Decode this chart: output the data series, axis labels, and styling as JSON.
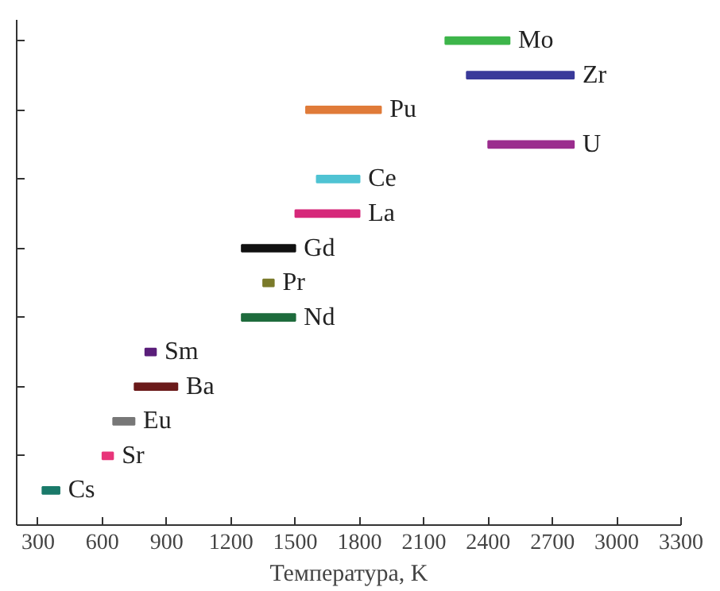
{
  "chart_data": {
    "type": "bar",
    "orientation": "horizontal",
    "xlabel": "Температура, K",
    "categories": [
      "Mo",
      "Zr",
      "Pu",
      "U",
      "Ce",
      "La",
      "Gd",
      "Pr",
      "Nd",
      "Sm",
      "Ba",
      "Eu",
      "Sr",
      "Cs"
    ],
    "base": [
      2200,
      2300,
      1550,
      2400,
      1600,
      1500,
      1250,
      1350,
      1250,
      800,
      750,
      650,
      600,
      320
    ],
    "values": [
      300,
      500,
      350,
      400,
      200,
      300,
      250,
      50,
      250,
      50,
      200,
      100,
      50,
      80
    ],
    "colors": [
      "#3db54a",
      "#3a3a9a",
      "#e07b39",
      "#9b2d8e",
      "#4fc3d3",
      "#d6287a",
      "#111111",
      "#7a7a2a",
      "#1e6b3c",
      "#5a1e7a",
      "#6b1a1a",
      "#777777",
      "#e8357a",
      "#1a7a6a"
    ],
    "xlim": [
      200,
      3300
    ],
    "xticks": [
      300,
      600,
      900,
      1200,
      1500,
      1800,
      2100,
      2400,
      2700,
      3000,
      3300
    ],
    "tick_labels": "x",
    "grid": false
  }
}
